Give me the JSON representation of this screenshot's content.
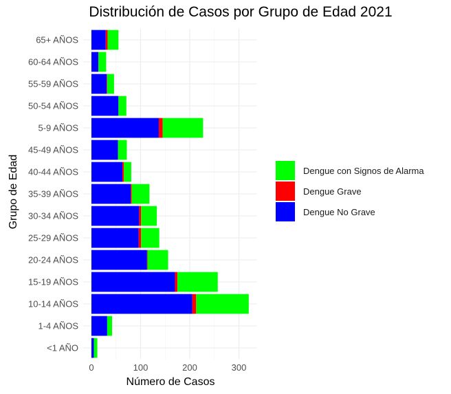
{
  "chart_data": {
    "type": "bar",
    "orientation": "horizontal",
    "stacked": true,
    "title": "Distribución de Casos por Grupo de Edad 2021",
    "xlabel": "Número de Casos",
    "ylabel": "Grupo de Edad",
    "xlim": [
      0,
      335
    ],
    "xticks": [
      0,
      100,
      200,
      300
    ],
    "grid": true,
    "legend_position": "right",
    "categories": [
      "<1 AÑO",
      "1-4 AÑOS",
      "10-14 AÑOS",
      "15-19 AÑOS",
      "20-24 AÑOS",
      "25-29 AÑOS",
      "30-34 AÑOS",
      "35-39 AÑOS",
      "40-44 AÑOS",
      "45-49 AÑOS",
      "5-9 AÑOS",
      "50-54 AÑOS",
      "55-59 AÑOS",
      "60-64 AÑOS",
      "65+ AÑOS"
    ],
    "series": [
      {
        "name": "Dengue No Grave",
        "color": "#0000FF",
        "values": [
          5,
          32,
          205,
          170,
          113,
          96,
          97,
          80,
          63,
          54,
          137,
          55,
          31,
          14,
          29
        ]
      },
      {
        "name": "Dengue Grave",
        "color": "#FF0000",
        "values": [
          0,
          0,
          8,
          5,
          1,
          5,
          4,
          2,
          3,
          0,
          8,
          0,
          1,
          0,
          4
        ]
      },
      {
        "name": "Dengue con Signos de Alarma",
        "color": "#00FF00",
        "values": [
          7,
          10,
          107,
          82,
          42,
          37,
          32,
          36,
          15,
          18,
          82,
          16,
          14,
          16,
          22
        ]
      }
    ],
    "legend_order": [
      "Dengue con Signos de Alarma",
      "Dengue Grave",
      "Dengue No Grave"
    ]
  }
}
